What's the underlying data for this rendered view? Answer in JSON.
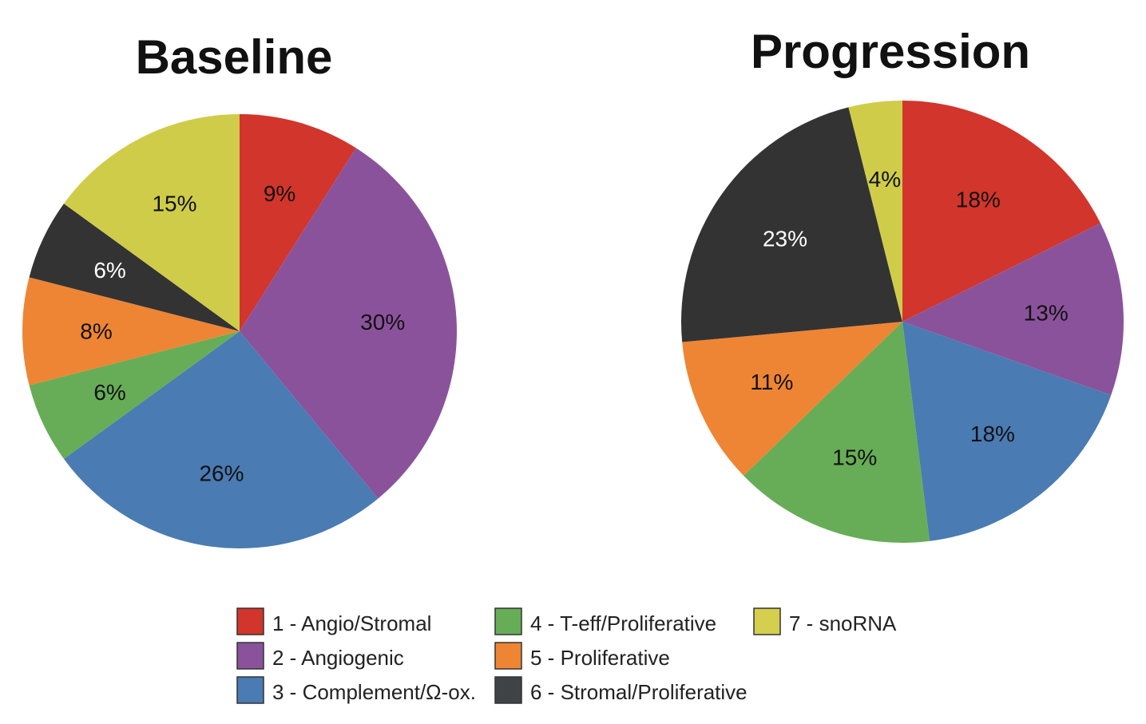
{
  "colors": {
    "angio_stromal": "#d2352b",
    "angiogenic": "#8b529c",
    "complement": "#4a7bb2",
    "teff_proliferative": "#67ad57",
    "proliferative": "#ee8534",
    "stromal_proliferative": "#333333",
    "snorna": "#cfcc4a"
  },
  "legend": {
    "items": [
      {
        "label": "1 - Angio/Stromal",
        "color": "#d2352b"
      },
      {
        "label": "2 - Angiogenic",
        "color": "#8b529c"
      },
      {
        "label": "3 - Complement/Ω-ox.",
        "color": "#4a7bb2"
      },
      {
        "label": "4 - T-eff/Proliferative",
        "color": "#67ad57"
      },
      {
        "label": "5 - Proliferative",
        "color": "#ee8534"
      },
      {
        "label": "6 - Stromal/Proliferative",
        "color": "#3f4346"
      },
      {
        "label": "7 - snoRNA",
        "color": "#d4cf4d"
      }
    ]
  },
  "chart_data": [
    {
      "type": "pie",
      "title": "Baseline",
      "start_angle_deg": 0,
      "direction": "clockwise",
      "slices": [
        {
          "category": "1 - Angio/Stromal",
          "value": 9,
          "label": "9%",
          "color": "#d2352b",
          "label_color": "#111111"
        },
        {
          "category": "2 - Angiogenic",
          "value": 30,
          "label": "30%",
          "color": "#8b529c",
          "label_color": "#111111"
        },
        {
          "category": "3 - Complement/Ω-ox.",
          "value": 26,
          "label": "26%",
          "color": "#4a7bb2",
          "label_color": "#111111"
        },
        {
          "category": "4 - T-eff/Proliferative",
          "value": 6,
          "label": "6%",
          "color": "#67ad57",
          "label_color": "#111111"
        },
        {
          "category": "5 - Proliferative",
          "value": 8,
          "label": "8%",
          "color": "#ee8534",
          "label_color": "#111111"
        },
        {
          "category": "6 - Stromal/Proliferative",
          "value": 6,
          "label": "6%",
          "color": "#333333",
          "label_color": "#ffffff"
        },
        {
          "category": "7 - snoRNA",
          "value": 15,
          "label": "15%",
          "color": "#cfcc4a",
          "label_color": "#111111"
        }
      ]
    },
    {
      "type": "pie",
      "title": "Progression",
      "start_angle_deg": 0,
      "direction": "clockwise",
      "slices": [
        {
          "category": "1 - Angio/Stromal",
          "value": 18,
          "label": "18%",
          "color": "#d2352b",
          "label_color": "#111111"
        },
        {
          "category": "2 - Angiogenic",
          "value": 13,
          "label": "13%",
          "color": "#8b529c",
          "label_color": "#111111"
        },
        {
          "category": "3 - Complement/Ω-ox.",
          "value": 18,
          "label": "18%",
          "color": "#4a7bb2",
          "label_color": "#111111"
        },
        {
          "category": "4 - T-eff/Proliferative",
          "value": 15,
          "label": "15%",
          "color": "#67ad57",
          "label_color": "#111111"
        },
        {
          "category": "5 - Proliferative",
          "value": 11,
          "label": "11%",
          "color": "#ee8534",
          "label_color": "#111111"
        },
        {
          "category": "6 - Stromal/Proliferative",
          "value": 23,
          "label": "23%",
          "color": "#333333",
          "label_color": "#ffffff"
        },
        {
          "category": "7 - snoRNA",
          "value": 4,
          "label": "4%",
          "color": "#cfcc4a",
          "label_color": "#111111"
        }
      ]
    }
  ]
}
